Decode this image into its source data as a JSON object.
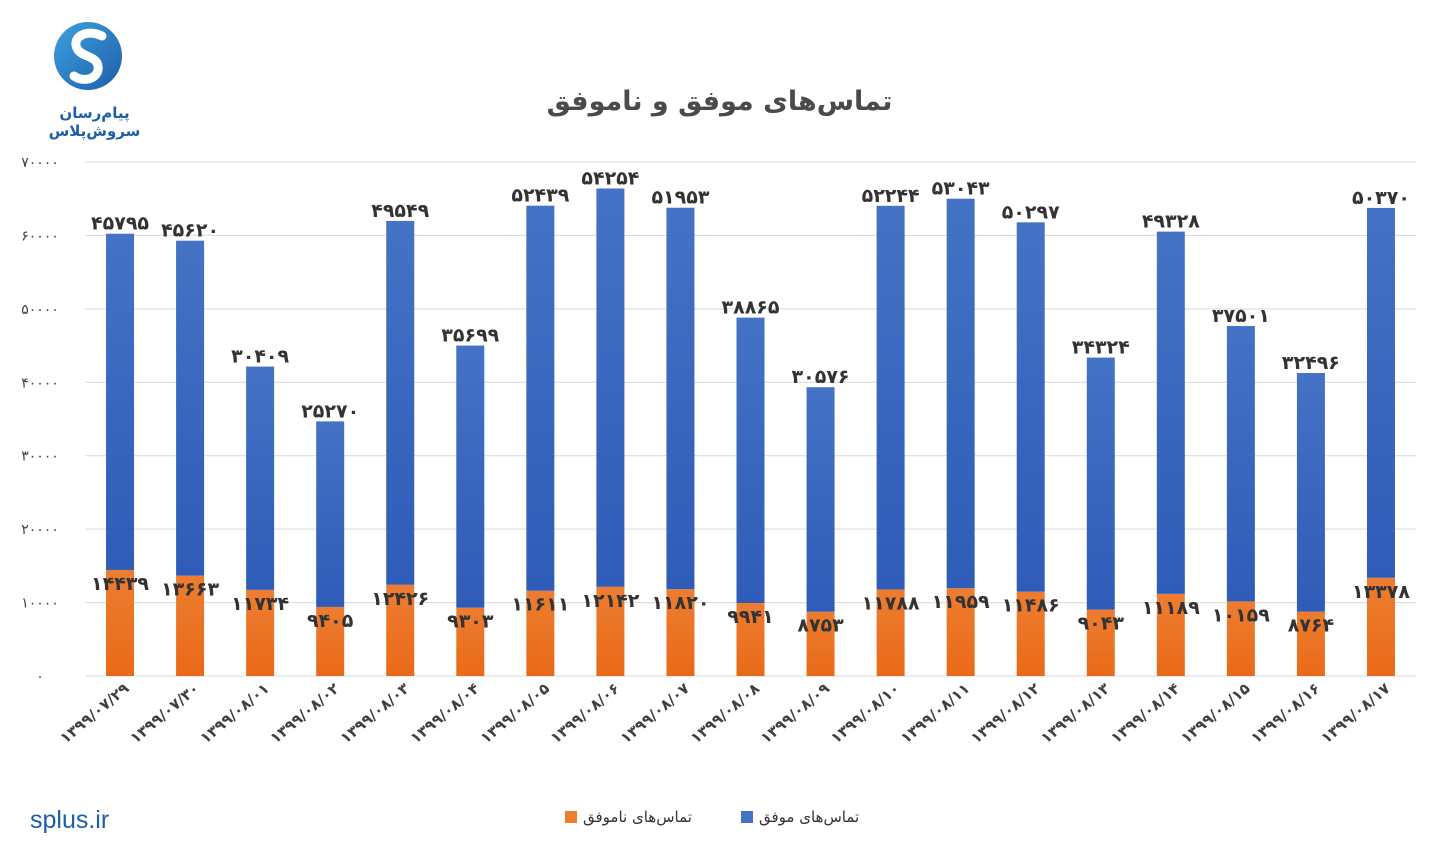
{
  "brand": {
    "name": "پیام‌رسان سروش‌پلاس",
    "website": "splus.ir"
  },
  "colors": {
    "success": "#4472c4",
    "success_dark": "#2e5cb8",
    "fail": "#ed7d31",
    "fail_dark": "#e96a18",
    "grid": "#d9d9d9",
    "text": "#404040",
    "brand": "#1d5fa8"
  },
  "chart_data": {
    "type": "bar",
    "stacked": true,
    "title": "تماس‌های موفق و ناموفق",
    "xlabel": "",
    "ylabel": "",
    "ylim": [
      0,
      70000
    ],
    "yticks": [
      0,
      10000,
      20000,
      30000,
      40000,
      50000,
      60000,
      70000
    ],
    "ytick_labels": [
      "۰",
      "۱۰۰۰۰",
      "۲۰۰۰۰",
      "۳۰۰۰۰",
      "۴۰۰۰۰",
      "۵۰۰۰۰",
      "۶۰۰۰۰",
      "۷۰۰۰۰"
    ],
    "grid": true,
    "legend": "bottom",
    "categories": [
      "۱۳۹۹/۰۷/۲۹",
      "۱۳۹۹/۰۷/۳۰",
      "۱۳۹۹/۰۸/۰۱",
      "۱۳۹۹/۰۸/۰۲",
      "۱۳۹۹/۰۸/۰۳",
      "۱۳۹۹/۰۸/۰۴",
      "۱۳۹۹/۰۸/۰۵",
      "۱۳۹۹/۰۸/۰۶",
      "۱۳۹۹/۰۸/۰۷",
      "۱۳۹۹/۰۸/۰۸",
      "۱۳۹۹/۰۸/۰۹",
      "۱۳۹۹/۰۸/۱۰",
      "۱۳۹۹/۰۸/۱۱",
      "۱۳۹۹/۰۸/۱۲",
      "۱۳۹۹/۰۸/۱۳",
      "۱۳۹۹/۰۸/۱۴",
      "۱۳۹۹/۰۸/۱۵",
      "۱۳۹۹/۰۸/۱۶",
      "۱۳۹۹/۰۸/۱۷"
    ],
    "series": [
      {
        "name": "تماس‌های ناموفق",
        "values": [
          14439,
          13663,
          11734,
          9405,
          12426,
          9303,
          11611,
          12142,
          11820,
          9941,
          8753,
          11788,
          11959,
          11486,
          9043,
          11189,
          10159,
          8764,
          13378
        ],
        "labels": [
          "۱۴۴۳۹",
          "۱۳۶۶۳",
          "۱۱۷۳۴",
          "۹۴۰۵",
          "۱۲۴۲۶",
          "۹۳۰۳",
          "۱۱۶۱۱",
          "۱۲۱۴۲",
          "۱۱۸۲۰",
          "۹۹۴۱",
          "۸۷۵۳",
          "۱۱۷۸۸",
          "۱۱۹۵۹",
          "۱۱۴۸۶",
          "۹۰۴۳",
          "۱۱۱۸۹",
          "۱۰۱۵۹",
          "۸۷۶۴",
          "۱۳۳۷۸"
        ]
      },
      {
        "name": "تماس‌های موفق",
        "values": [
          45795,
          45620,
          30409,
          25270,
          49549,
          35699,
          52439,
          54254,
          51953,
          38865,
          30576,
          52244,
          53043,
          50297,
          34324,
          49328,
          37501,
          32496,
          50370
        ],
        "labels": [
          "۴۵۷۹۵",
          "۴۵۶۲۰",
          "۳۰۴۰۹",
          "۲۵۲۷۰",
          "۴۹۵۴۹",
          "۳۵۶۹۹",
          "۵۲۴۳۹",
          "۵۴۲۵۴",
          "۵۱۹۵۳",
          "۳۸۸۶۵",
          "۳۰۵۷۶",
          "۵۲۲۴۴",
          "۵۳۰۴۳",
          "۵۰۲۹۷",
          "۳۴۳۲۴",
          "۴۹۳۲۸",
          "۳۷۵۰۱",
          "۳۲۴۹۶",
          "۵۰۳۷۰"
        ]
      }
    ]
  }
}
